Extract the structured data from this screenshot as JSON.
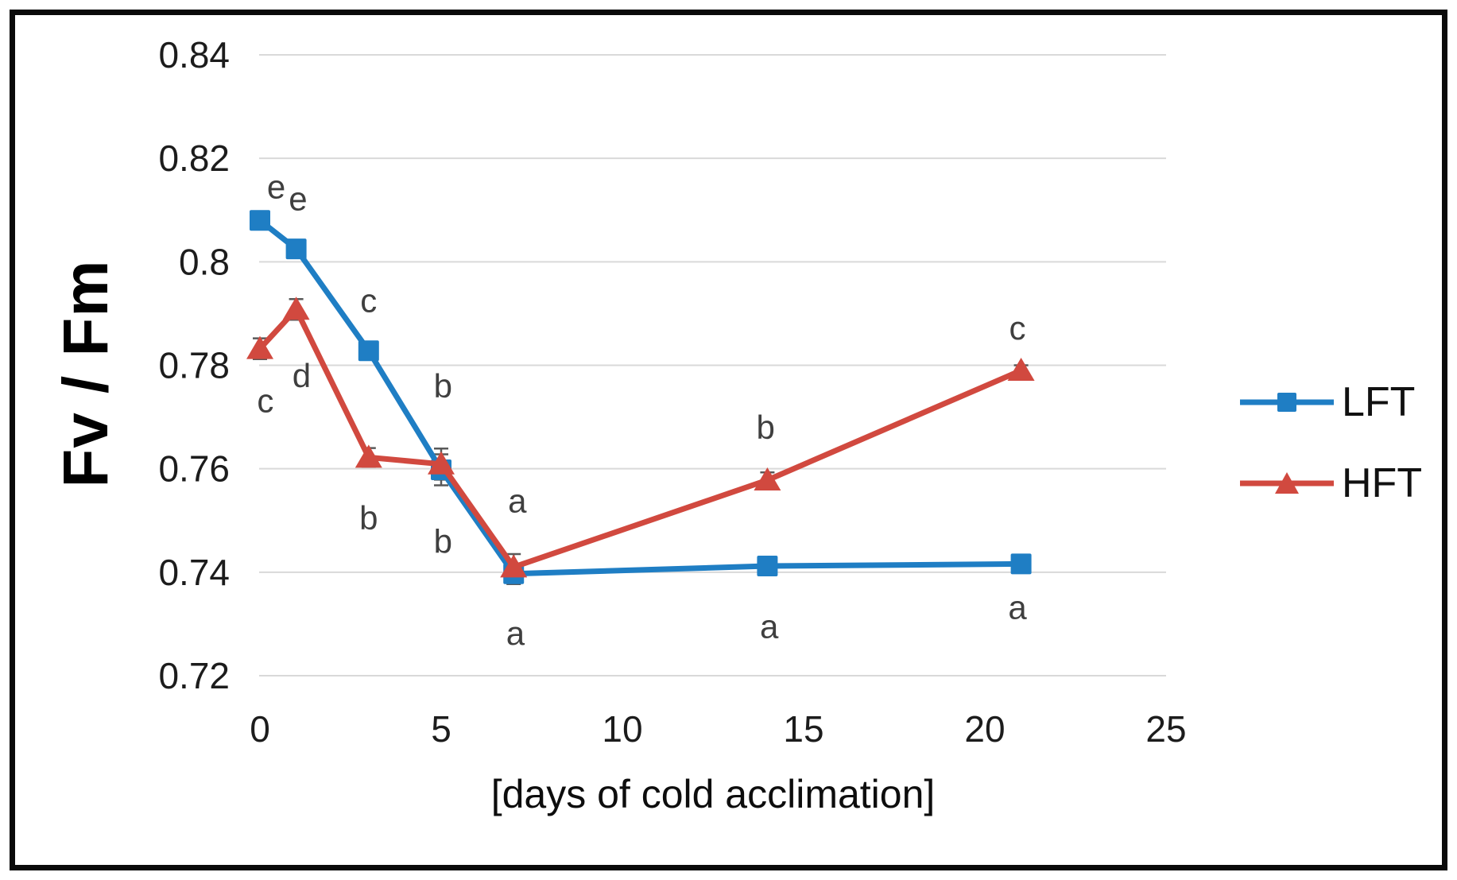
{
  "style": {
    "gridline": "#D9D9D9",
    "error_bar": "#595959",
    "sig_letter": "#3F3F3F",
    "tick_text": "#1C1C1C",
    "frame_border": "#000000",
    "background": "#FFFFFF"
  },
  "chart_data": {
    "type": "line",
    "title": "",
    "xlabel": "[days of cold acclimation]",
    "ylabel": "Fv / Fm",
    "xlim": [
      0,
      25
    ],
    "ylim": [
      0.72,
      0.84
    ],
    "x_ticks": [
      0,
      5,
      10,
      15,
      20,
      25
    ],
    "x_tick_labels": [
      "0",
      "5",
      "10",
      "15",
      "20",
      "25"
    ],
    "y_ticks": [
      0.84,
      0.82,
      0.8,
      0.78,
      0.76,
      0.74,
      0.72
    ],
    "y_tick_labels": [
      "0.84",
      "0.82",
      "0.8",
      "0.78",
      "0.76",
      "0.74",
      "0.72"
    ],
    "grid": true,
    "legend_position": "right",
    "x": [
      0,
      1,
      3,
      5,
      7,
      14,
      21
    ],
    "series": [
      {
        "name": "LFT",
        "marker": "square",
        "color": "#1F7EC4",
        "values": [
          0.808,
          0.8025,
          0.7828,
          0.7598,
          0.7397,
          0.7412,
          0.7416
        ],
        "errors": [
          0,
          0,
          0,
          0.003,
          0.002,
          0,
          0
        ],
        "sig_letters": [
          "e",
          "e",
          "c",
          "b",
          "a",
          "a",
          "a"
        ]
      },
      {
        "name": "HFT",
        "marker": "triangle",
        "color": "#D1493F",
        "values": [
          0.7832,
          0.7908,
          0.7622,
          0.7609,
          0.741,
          0.7578,
          0.779
        ],
        "errors": [
          0.002,
          0.002,
          0.0018,
          0.003,
          0.0025,
          0.0015,
          0.001
        ],
        "sig_letters": [
          "c",
          "d",
          "b",
          "b",
          "a",
          "b",
          "c"
        ]
      }
    ],
    "annotations": [
      {
        "text": "e",
        "series": "LFT",
        "x": 0.45,
        "y": 0.8145
      },
      {
        "text": "e",
        "series": "LFT",
        "x": 1.05,
        "y": 0.8122
      },
      {
        "text": "c",
        "series": "LFT",
        "x": 3.0,
        "y": 0.7925
      },
      {
        "text": "b",
        "series": "LFT",
        "x": 5.05,
        "y": 0.776
      },
      {
        "text": "a",
        "series": "LFT",
        "x": 7.05,
        "y": 0.7282
      },
      {
        "text": "a",
        "series": "LFT",
        "x": 14.05,
        "y": 0.7295
      },
      {
        "text": "a",
        "series": "LFT",
        "x": 20.9,
        "y": 0.7332
      },
      {
        "text": "c",
        "series": "HFT",
        "x": 0.15,
        "y": 0.7732
      },
      {
        "text": "d",
        "series": "HFT",
        "x": 1.15,
        "y": 0.778
      },
      {
        "text": "b",
        "series": "HFT",
        "x": 3.0,
        "y": 0.7505
      },
      {
        "text": "b",
        "series": "HFT",
        "x": 5.05,
        "y": 0.746
      },
      {
        "text": "a",
        "series": "HFT",
        "x": 7.1,
        "y": 0.7538
      },
      {
        "text": "b",
        "series": "HFT",
        "x": 13.95,
        "y": 0.768
      },
      {
        "text": "c",
        "series": "HFT",
        "x": 20.9,
        "y": 0.7872
      }
    ]
  }
}
